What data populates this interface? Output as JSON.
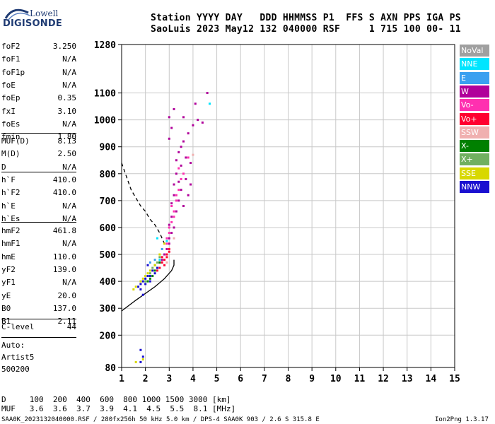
{
  "logo": {
    "line1": "Lowell",
    "line2": "DIGISONDE"
  },
  "header": {
    "row1": "Station YYYY DAY   DDD HHMMSS P1  FFS S AXN PPS IGA PS",
    "row2": "SaoLuis 2023 May12 132 040000 RSF     1 715 100 00- 11"
  },
  "params": {
    "group1": [
      {
        "k": "foF2",
        "v": "3.250"
      },
      {
        "k": "foF1",
        "v": "N/A"
      },
      {
        "k": "foF1p",
        "v": "N/A"
      },
      {
        "k": "foE",
        "v": "N/A"
      },
      {
        "k": "foEp",
        "v": "0.35"
      },
      {
        "k": "fxI",
        "v": "3.10"
      },
      {
        "k": "foEs",
        "v": "N/A"
      },
      {
        "k": "fmin",
        "v": "1.80"
      }
    ],
    "group2": [
      {
        "k": "MUF(D)",
        "v": "8.13"
      },
      {
        "k": "M(D)",
        "v": "2.50"
      },
      {
        "k": "D",
        "v": "N/A"
      }
    ],
    "group3": [
      {
        "k": "h`F",
        "v": "410.0"
      },
      {
        "k": "h`F2",
        "v": "410.0"
      },
      {
        "k": "h`E",
        "v": "N/A"
      },
      {
        "k": "h`Es",
        "v": "N/A"
      }
    ],
    "group4": [
      {
        "k": "hmF2",
        "v": "461.8"
      },
      {
        "k": "hmF1",
        "v": "N/A"
      },
      {
        "k": "hmE",
        "v": "110.0"
      },
      {
        "k": "yF2",
        "v": "139.0"
      },
      {
        "k": "yF1",
        "v": "N/A"
      },
      {
        "k": "yE",
        "v": "20.0"
      },
      {
        "k": "B0",
        "v": "137.0"
      },
      {
        "k": "B1",
        "v": "2.11"
      }
    ],
    "group5": [
      {
        "k": "C-level",
        "v": "44"
      }
    ],
    "auto": [
      "Auto:",
      "Artist5",
      "500200"
    ]
  },
  "legend": [
    {
      "label": "NoVal",
      "color": "#a0a0a0"
    },
    {
      "label": "NNE",
      "color": "#00e5ff"
    },
    {
      "label": "E",
      "color": "#3aa0f0"
    },
    {
      "label": "W",
      "color": "#b0009a"
    },
    {
      "label": "Vo-",
      "color": "#ff30b0"
    },
    {
      "label": "Vo+",
      "color": "#ff0030"
    },
    {
      "label": "SSW",
      "color": "#f0b0b0"
    },
    {
      "label": "X-",
      "color": "#008000"
    },
    {
      "label": "X+",
      "color": "#70b060"
    },
    {
      "label": "SSE",
      "color": "#d8d800"
    },
    {
      "label": "NNW",
      "color": "#1a10d0"
    }
  ],
  "footer": {
    "row_d": "D     100  200  400  600  800 1000 1500 3000 [km]",
    "row_muf": "MUF   3.6  3.6  3.7  3.9  4.1  4.5  5.5  8.1 [MHz]",
    "bottom_left": "SAA0K_2023132040000.RSF / 280fx256h 50 kHz 5.0 km / DPS-4 SAA0K 903 / 2.6 S 315.8 E",
    "bottom_right": "Ion2Png 1.3.17"
  },
  "chart_data": {
    "type": "scatter",
    "title": "",
    "xlabel": "",
    "ylabel": "",
    "xlim": [
      1,
      15
    ],
    "ylim": [
      80,
      1280
    ],
    "x_ticks": [
      1,
      2,
      3,
      4,
      5,
      6,
      7,
      8,
      9,
      10,
      11,
      12,
      13,
      14,
      15
    ],
    "y_ticks": [
      80,
      200,
      300,
      400,
      500,
      600,
      700,
      800,
      900,
      1000,
      1100,
      1280
    ],
    "grid": true,
    "series": [
      {
        "name": "W",
        "color": "#b0009a",
        "points": [
          [
            2.9,
            520
          ],
          [
            3.0,
            560
          ],
          [
            3.0,
            610
          ],
          [
            3.1,
            640
          ],
          [
            3.1,
            690
          ],
          [
            3.2,
            720
          ],
          [
            3.2,
            760
          ],
          [
            3.3,
            800
          ],
          [
            3.3,
            850
          ],
          [
            3.4,
            880
          ],
          [
            3.5,
            900
          ],
          [
            3.6,
            920
          ],
          [
            3.8,
            950
          ],
          [
            4.0,
            980
          ],
          [
            4.2,
            1000
          ],
          [
            3.9,
            840
          ],
          [
            3.7,
            780
          ],
          [
            3.5,
            740
          ],
          [
            3.4,
            700
          ],
          [
            3.6,
            680
          ],
          [
            3.8,
            720
          ],
          [
            3.9,
            760
          ],
          [
            3.3,
            660
          ],
          [
            3.2,
            600
          ],
          [
            3.1,
            580
          ],
          [
            3.0,
            540
          ],
          [
            2.8,
            500
          ],
          [
            2.7,
            480
          ],
          [
            2.6,
            470
          ],
          [
            3.0,
            930
          ],
          [
            3.1,
            970
          ],
          [
            3.0,
            1010
          ],
          [
            3.2,
            1040
          ],
          [
            3.6,
            1010
          ],
          [
            4.4,
            990
          ],
          [
            4.6,
            1100
          ],
          [
            4.1,
            1060
          ],
          [
            3.5,
            830
          ],
          [
            3.4,
            770
          ],
          [
            3.7,
            860
          ]
        ]
      },
      {
        "name": "Vo-",
        "color": "#ff30b0",
        "points": [
          [
            3.0,
            580
          ],
          [
            3.1,
            620
          ],
          [
            3.2,
            660
          ],
          [
            3.3,
            700
          ],
          [
            3.4,
            740
          ],
          [
            3.5,
            780
          ],
          [
            3.2,
            640
          ],
          [
            3.0,
            600
          ],
          [
            2.9,
            560
          ],
          [
            3.3,
            720
          ],
          [
            3.6,
            800
          ],
          [
            3.8,
            860
          ],
          [
            2.9,
            540
          ],
          [
            3.1,
            680
          ],
          [
            3.4,
            820
          ]
        ]
      },
      {
        "name": "Vo+",
        "color": "#ff0030",
        "points": [
          [
            2.7,
            470
          ],
          [
            2.8,
            480
          ],
          [
            2.9,
            500
          ],
          [
            3.0,
            520
          ],
          [
            2.8,
            460
          ],
          [
            2.6,
            450
          ],
          [
            2.9,
            490
          ],
          [
            3.0,
            510
          ],
          [
            2.7,
            490
          ],
          [
            2.5,
            440
          ]
        ]
      },
      {
        "name": "X-",
        "color": "#008000",
        "points": [
          [
            2.3,
            420
          ],
          [
            2.4,
            440
          ],
          [
            2.5,
            450
          ],
          [
            2.2,
            410
          ],
          [
            2.6,
            470
          ],
          [
            2.1,
            400
          ],
          [
            2.4,
            460
          ]
        ]
      },
      {
        "name": "X+",
        "color": "#70b060",
        "points": [
          [
            2.2,
            430
          ],
          [
            2.3,
            450
          ],
          [
            2.5,
            470
          ],
          [
            2.0,
            400
          ],
          [
            2.6,
            490
          ]
        ]
      },
      {
        "name": "SSE",
        "color": "#d8d800",
        "points": [
          [
            1.5,
            370
          ],
          [
            1.6,
            380
          ],
          [
            1.8,
            400
          ],
          [
            2.0,
            420
          ],
          [
            2.2,
            440
          ],
          [
            2.4,
            460
          ],
          [
            1.9,
            410
          ],
          [
            2.1,
            430
          ],
          [
            2.6,
            500
          ],
          [
            2.8,
            540
          ],
          [
            1.6,
            100
          ],
          [
            1.9,
            110
          ]
        ]
      },
      {
        "name": "NNW",
        "color": "#1a10d0",
        "points": [
          [
            1.7,
            380
          ],
          [
            1.8,
            390
          ],
          [
            1.9,
            400
          ],
          [
            2.0,
            410
          ],
          [
            2.1,
            420
          ],
          [
            2.2,
            420
          ],
          [
            2.3,
            440
          ],
          [
            2.4,
            430
          ],
          [
            1.8,
            370
          ],
          [
            2.0,
            390
          ],
          [
            2.2,
            400
          ],
          [
            2.5,
            450
          ],
          [
            2.1,
            460
          ],
          [
            1.9,
            350
          ],
          [
            1.8,
            100
          ],
          [
            1.9,
            120
          ],
          [
            1.8,
            145
          ]
        ]
      },
      {
        "name": "NNE",
        "color": "#00e5ff",
        "points": [
          [
            2.6,
            480
          ],
          [
            2.9,
            550
          ],
          [
            4.7,
            1060
          ],
          [
            2.5,
            560
          ]
        ]
      },
      {
        "name": "E",
        "color": "#3aa0f0",
        "points": [
          [
            2.4,
            480
          ],
          [
            2.7,
            520
          ],
          [
            2.2,
            470
          ]
        ]
      },
      {
        "name": "SSW",
        "color": "#f0b0b0",
        "points": [
          [
            3.2,
            560
          ],
          [
            2.9,
            470
          ],
          [
            4.0,
            870
          ]
        ]
      }
    ],
    "trace_dashed": [
      [
        1.0,
        840
      ],
      [
        1.2,
        790
      ],
      [
        1.4,
        740
      ],
      [
        1.6,
        710
      ],
      [
        1.8,
        680
      ],
      [
        2.0,
        660
      ],
      [
        2.2,
        630
      ],
      [
        2.4,
        610
      ],
      [
        2.6,
        580
      ],
      [
        2.8,
        540
      ]
    ],
    "trace_solid": [
      [
        1.0,
        290
      ],
      [
        1.3,
        310
      ],
      [
        1.6,
        330
      ],
      [
        2.0,
        355
      ],
      [
        2.4,
        380
      ],
      [
        2.8,
        410
      ],
      [
        3.1,
        440
      ],
      [
        3.2,
        460
      ],
      [
        3.2,
        480
      ]
    ]
  }
}
